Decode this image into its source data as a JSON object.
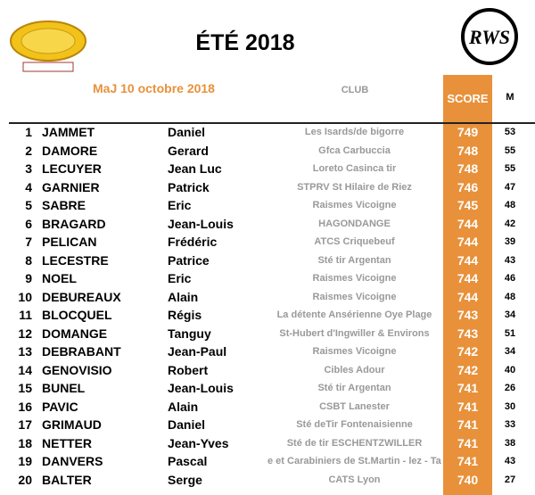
{
  "header": {
    "title": "ÉTÉ 2018",
    "update": "MaJ 10 octobre 2018",
    "logo": "RWS"
  },
  "columns": {
    "club": "CLUB",
    "score": "SCORE",
    "m": "M"
  },
  "table": {
    "rows": [
      [
        "1",
        "JAMMET",
        "Daniel",
        "Les Isards/de bigorre",
        "749",
        "53"
      ],
      [
        "2",
        "DAMORE",
        "Gerard",
        "Gfca Carbuccia",
        "748",
        "55"
      ],
      [
        "3",
        "LECUYER",
        "Jean Luc",
        "Loreto Casinca tir",
        "748",
        "55"
      ],
      [
        "4",
        "GARNIER",
        "Patrick",
        "STPRV St Hilaire de Riez",
        "746",
        "47"
      ],
      [
        "5",
        "SABRE",
        "Eric",
        "Raismes Vicoigne",
        "745",
        "48"
      ],
      [
        "6",
        "BRAGARD",
        "Jean-Louis",
        "HAGONDANGE",
        "744",
        "42"
      ],
      [
        "7",
        "PELICAN",
        "Frédéric",
        "ATCS Criquebeuf",
        "744",
        "39"
      ],
      [
        "8",
        "LECESTRE",
        "Patrice",
        "Sté tir Argentan",
        "744",
        "43"
      ],
      [
        "9",
        "NOEL",
        "Eric",
        "Raismes Vicoigne",
        "744",
        "46"
      ],
      [
        "10",
        "DEBUREAUX",
        "Alain",
        "Raismes Vicoigne",
        "744",
        "48"
      ],
      [
        "11",
        "BLOCQUEL",
        "Régis",
        "La détente Ansérienne Oye Plage",
        "743",
        "34"
      ],
      [
        "12",
        "DOMANGE",
        "Tanguy",
        "St-Hubert d'Ingwiller & Environs",
        "743",
        "51"
      ],
      [
        "13",
        "DEBRABANT",
        "Jean-Paul",
        "Raismes Vicoigne",
        "742",
        "34"
      ],
      [
        "14",
        "GENOVISIO",
        "Robert",
        "Cibles Adour",
        "742",
        "40"
      ],
      [
        "15",
        "BUNEL",
        "Jean-Louis",
        "Sté tir Argentan",
        "741",
        "26"
      ],
      [
        "16",
        "PAVIC",
        "Alain",
        "CSBT Lanester",
        "741",
        "30"
      ],
      [
        "17",
        "GRIMAUD",
        "Daniel",
        "Sté deTir Fontenaisienne",
        "741",
        "33"
      ],
      [
        "18",
        "NETTER",
        "Jean-Yves",
        "Sté de tir ESCHENTZWILLER",
        "741",
        "38"
      ],
      [
        "19",
        "DANVERS",
        "Pascal",
        "e et Carabiniers de St.Martin - lez - Tat",
        "741",
        "43"
      ],
      [
        "20",
        "BALTER",
        "Serge",
        "CATS Lyon",
        "740",
        "27"
      ]
    ]
  }
}
